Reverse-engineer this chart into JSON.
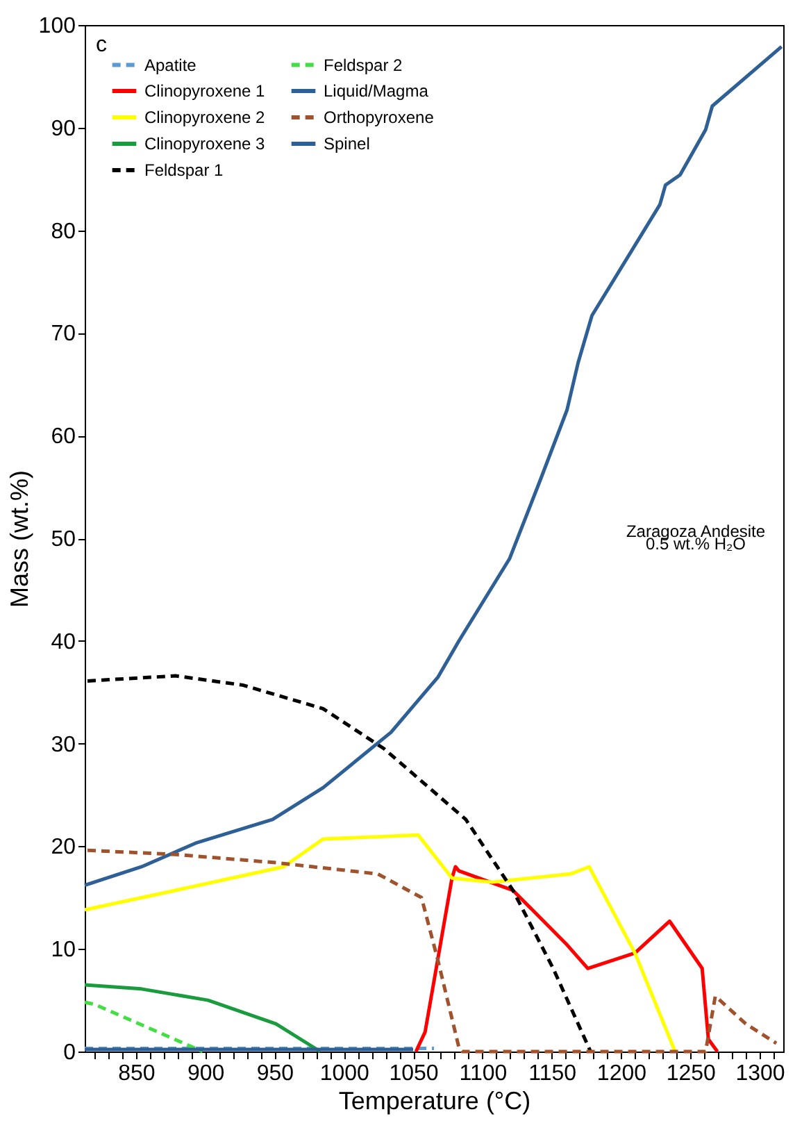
{
  "chart_data": {
    "type": "line",
    "title": "c",
    "xlabel": "Temperature (°C)",
    "ylabel": "Mass (wt.%)",
    "annotations": [
      "Zaragoza Andesite",
      "0.5 wt.% H₂O"
    ],
    "xlim": [
      813,
      1317
    ],
    "ylim": [
      0,
      100
    ],
    "xticks": [
      {
        "value": 820,
        "label": null
      },
      {
        "value": 830,
        "label": null
      },
      {
        "value": 840,
        "label": null
      },
      850,
      {
        "value": 860,
        "label": null
      },
      {
        "value": 870,
        "label": null
      },
      {
        "value": 880,
        "label": null
      },
      {
        "value": 890,
        "label": null
      },
      900,
      {
        "value": 910,
        "label": null
      },
      {
        "value": 920,
        "label": null
      },
      {
        "value": 930,
        "label": null
      },
      {
        "value": 940,
        "label": null
      },
      950,
      {
        "value": 960,
        "label": null
      },
      {
        "value": 970,
        "label": null
      },
      {
        "value": 980,
        "label": null
      },
      {
        "value": 990,
        "label": null
      },
      1000,
      {
        "value": 1010,
        "label": null
      },
      {
        "value": 1020,
        "label": null
      },
      {
        "value": 1030,
        "label": null
      },
      {
        "value": 1040,
        "label": null
      },
      1050,
      {
        "value": 1060,
        "label": null
      },
      {
        "value": 1070,
        "label": null
      },
      {
        "value": 1080,
        "label": null
      },
      {
        "value": 1090,
        "label": null
      },
      1100,
      {
        "value": 1110,
        "label": null
      },
      {
        "value": 1120,
        "label": null
      },
      {
        "value": 1130,
        "label": null
      },
      {
        "value": 1140,
        "label": null
      },
      1150,
      {
        "value": 1160,
        "label": null
      },
      {
        "value": 1170,
        "label": null
      },
      {
        "value": 1180,
        "label": null
      },
      {
        "value": 1190,
        "label": null
      },
      1200,
      {
        "value": 1210,
        "label": null
      },
      {
        "value": 1220,
        "label": null
      },
      {
        "value": 1230,
        "label": null
      },
      {
        "value": 1240,
        "label": null
      },
      1250,
      {
        "value": 1260,
        "label": null
      },
      {
        "value": 1270,
        "label": null
      },
      {
        "value": 1280,
        "label": null
      },
      {
        "value": 1290,
        "label": null
      },
      1300,
      {
        "value": 1310,
        "label": null
      }
    ],
    "yticks": [
      0,
      10,
      20,
      30,
      40,
      50,
      60,
      70,
      80,
      90,
      100
    ],
    "grid": false,
    "legend": "top left",
    "marker": "none",
    "series": [
      {
        "name": "Apatite",
        "color": "#5b9bd5",
        "line_style": "dashed",
        "x": [
          813,
          1065
        ],
        "values": [
          0.3,
          0.3
        ]
      },
      {
        "name": "Clinopyroxene 1",
        "color": "#ff0000",
        "line_style": "solid",
        "x": [
          1052,
          1058.6,
          1078,
          1080.5,
          1083,
          1122,
          1161,
          1176,
          1210,
          1235,
          1258.5,
          1263,
          1269.5
        ],
        "values": [
          0,
          1.9,
          16.9,
          18.0,
          17.6,
          15.7,
          10.4,
          8.1,
          9.6,
          12.7,
          8.1,
          1.2,
          0
        ]
      },
      {
        "name": "Clinopyroxene 2",
        "color": "#ffff00",
        "line_style": "solid",
        "x": [
          813,
          878.5,
          956.5,
          985,
          1053.6,
          1078,
          1107,
          1163.5,
          1177,
          1210,
          1239
        ],
        "values": [
          13.8,
          15.7,
          18.0,
          20.7,
          21.1,
          16.9,
          16.5,
          17.3,
          18.0,
          9.6,
          0
        ]
      },
      {
        "name": "Clinopyroxene 3",
        "color": "#1a9c3e",
        "line_style": "solid",
        "x": [
          813,
          854,
          902,
          951,
          983
        ],
        "values": [
          6.5,
          6.1,
          5.0,
          2.7,
          0
        ]
      },
      {
        "name": "Feldspar 1",
        "color": "#000000",
        "line_style": "dashed",
        "x": [
          815,
          878.5,
          927,
          985,
          1029,
          1088,
          1122,
          1151,
          1178
        ],
        "values": [
          36.1,
          36.6,
          35.7,
          33.4,
          29.5,
          22.6,
          15.7,
          8.1,
          0
        ]
      },
      {
        "name": "Feldspar 2",
        "color": "#44dd44",
        "line_style": "dashed",
        "x": [
          813,
          820,
          866,
          898
        ],
        "values": [
          4.8,
          4.6,
          1.9,
          0
        ]
      },
      {
        "name": "Liquid/Magma",
        "color": "#2e6096",
        "line_style": "solid",
        "x": [
          813,
          854,
          893,
          948.5,
          985,
          1034,
          1068,
          1083,
          1119.5,
          1141.5,
          1161,
          1169,
          1179,
          1228,
          1232,
          1242.6,
          1261,
          1265.8,
          1315.8
        ],
        "values": [
          16.2,
          18.0,
          20.3,
          22.6,
          25.7,
          31.1,
          36.5,
          40.0,
          48.0,
          55.6,
          62.5,
          67.1,
          71.7,
          82.5,
          84.4,
          85.4,
          89.8,
          92.1,
          97.9
        ]
      },
      {
        "name": "Orthopyroxene",
        "color": "#a0522d",
        "line_style": "dashed",
        "x": [
          815,
          878.5,
          951,
          1024.5,
          1056,
          1068,
          1083,
          1085.5,
          1261,
          1268,
          1290,
          1312
        ],
        "values": [
          19.6,
          19.2,
          18.4,
          17.3,
          15.0,
          8.8,
          0.4,
          0,
          0,
          5.4,
          2.7,
          0.8
        ]
      },
      {
        "name": "Spinel",
        "color": "#2e6096",
        "line_style": "solid",
        "x": [
          813,
          1050
        ],
        "values": [
          0.2,
          0.2
        ]
      }
    ]
  }
}
